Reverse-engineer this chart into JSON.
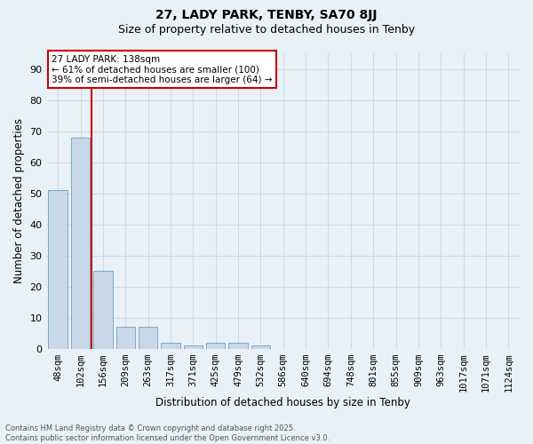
{
  "title1": "27, LADY PARK, TENBY, SA70 8JJ",
  "title2": "Size of property relative to detached houses in Tenby",
  "xlabel": "Distribution of detached houses by size in Tenby",
  "ylabel": "Number of detached properties",
  "categories": [
    "48sqm",
    "102sqm",
    "156sqm",
    "209sqm",
    "263sqm",
    "317sqm",
    "371sqm",
    "425sqm",
    "479sqm",
    "532sqm",
    "586sqm",
    "640sqm",
    "694sqm",
    "748sqm",
    "801sqm",
    "855sqm",
    "909sqm",
    "963sqm",
    "1017sqm",
    "1071sqm",
    "1124sqm"
  ],
  "values": [
    51,
    68,
    25,
    7,
    7,
    2,
    1,
    2,
    2,
    1,
    0,
    0,
    0,
    0,
    0,
    0,
    0,
    0,
    0,
    0,
    0
  ],
  "bar_color": "#c8d8e8",
  "bar_edge_color": "#7aaac8",
  "grid_color": "#d0d8e0",
  "bg_color": "#e8f0f8",
  "redline_x": 1.5,
  "annotation_text": "27 LADY PARK: 138sqm\n← 61% of detached houses are smaller (100)\n39% of semi-detached houses are larger (64) →",
  "annotation_box_color": "#ffffff",
  "annotation_border_color": "#cc0000",
  "footnote": "Contains HM Land Registry data © Crown copyright and database right 2025.\nContains public sector information licensed under the Open Government Licence v3.0.",
  "ylim": [
    0,
    95
  ],
  "yticks": [
    0,
    10,
    20,
    30,
    40,
    50,
    60,
    70,
    80,
    90
  ],
  "title1_fontsize": 10,
  "title2_fontsize": 9,
  "ylabel_fontsize": 8.5,
  "xlabel_fontsize": 8.5,
  "tick_fontsize": 7.5,
  "annot_fontsize": 7.5,
  "footnote_fontsize": 6
}
